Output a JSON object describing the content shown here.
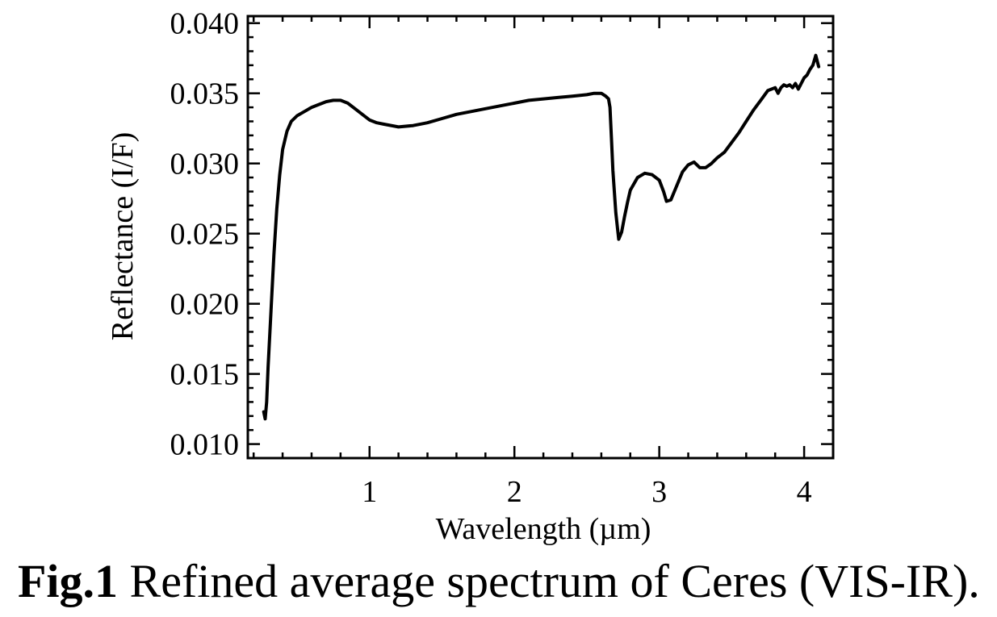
{
  "chart_data": {
    "type": "line",
    "title": "",
    "xlabel": "Wavelength (µm)",
    "ylabel": "Reflectance (I/F)",
    "xlim": [
      0.16,
      4.2
    ],
    "ylim": [
      0.009,
      0.0405
    ],
    "xticks": [
      1,
      2,
      3,
      4
    ],
    "xtick_labels": [
      "1",
      "2",
      "3",
      "4"
    ],
    "yticks": [
      0.01,
      0.015,
      0.02,
      0.025,
      0.03,
      0.035,
      0.04
    ],
    "ytick_labels": [
      "0.010",
      "0.015",
      "0.020",
      "0.025",
      "0.030",
      "0.035",
      "0.040"
    ],
    "grid": false,
    "legend": "none",
    "line_color": "#000000",
    "series": [
      {
        "name": "",
        "x": [
          0.27,
          0.28,
          0.29,
          0.3,
          0.32,
          0.34,
          0.36,
          0.38,
          0.4,
          0.43,
          0.46,
          0.5,
          0.55,
          0.6,
          0.65,
          0.7,
          0.75,
          0.8,
          0.85,
          0.9,
          0.95,
          1.0,
          1.05,
          1.1,
          1.2,
          1.3,
          1.4,
          1.5,
          1.6,
          1.7,
          1.8,
          1.9,
          2.0,
          2.1,
          2.2,
          2.3,
          2.4,
          2.5,
          2.55,
          2.6,
          2.63,
          2.65,
          2.66,
          2.67,
          2.68,
          2.7,
          2.72,
          2.74,
          2.76,
          2.78,
          2.8,
          2.85,
          2.9,
          2.95,
          3.0,
          3.03,
          3.05,
          3.08,
          3.12,
          3.16,
          3.2,
          3.24,
          3.28,
          3.32,
          3.36,
          3.4,
          3.45,
          3.5,
          3.55,
          3.6,
          3.65,
          3.7,
          3.75,
          3.8,
          3.82,
          3.84,
          3.86,
          3.88,
          3.9,
          3.92,
          3.94,
          3.96,
          3.98,
          4.0,
          4.02,
          4.04,
          4.06,
          4.08,
          4.1
        ],
        "values": [
          0.0123,
          0.0118,
          0.013,
          0.0155,
          0.0195,
          0.0235,
          0.0268,
          0.0292,
          0.031,
          0.0323,
          0.033,
          0.0334,
          0.0337,
          0.034,
          0.0342,
          0.0344,
          0.0345,
          0.0345,
          0.0343,
          0.0339,
          0.0335,
          0.0331,
          0.0329,
          0.0328,
          0.0326,
          0.0327,
          0.0329,
          0.0332,
          0.0335,
          0.0337,
          0.0339,
          0.0341,
          0.0343,
          0.0345,
          0.0346,
          0.0347,
          0.0348,
          0.0349,
          0.035,
          0.035,
          0.0348,
          0.0346,
          0.034,
          0.0318,
          0.0295,
          0.0265,
          0.0246,
          0.0251,
          0.0262,
          0.0272,
          0.0281,
          0.029,
          0.0293,
          0.0292,
          0.0288,
          0.028,
          0.0273,
          0.0274,
          0.0284,
          0.0294,
          0.0299,
          0.0301,
          0.0297,
          0.0297,
          0.03,
          0.0304,
          0.0308,
          0.0315,
          0.0322,
          0.033,
          0.0338,
          0.0345,
          0.0352,
          0.0354,
          0.035,
          0.0354,
          0.0356,
          0.0355,
          0.0356,
          0.0354,
          0.0357,
          0.0353,
          0.0357,
          0.0361,
          0.0363,
          0.0367,
          0.037,
          0.0377,
          0.0369
        ]
      }
    ]
  },
  "caption": {
    "label": "Fig.1",
    "text": " Refined average spectrum of Ceres (VIS-IR)."
  }
}
